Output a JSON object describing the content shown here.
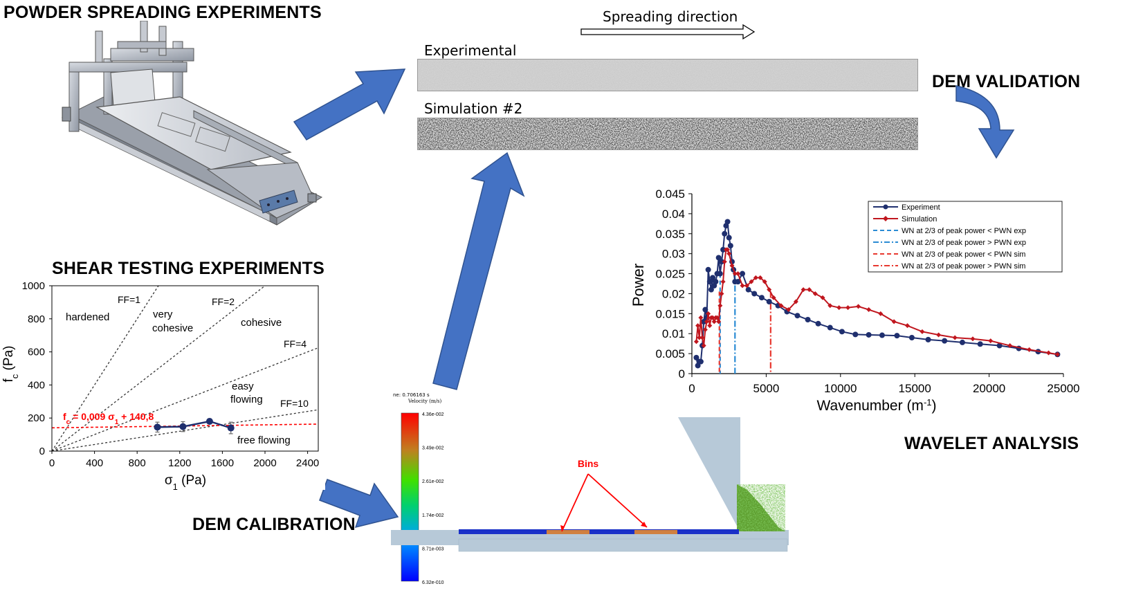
{
  "titles": {
    "powder_spreading": "POWDER SPREADING EXPERIMENTS",
    "shear_testing": "SHEAR TESTING EXPERIMENTS",
    "dem_calibration": "DEM CALIBRATION",
    "dem_validation": "DEM VALIDATION",
    "wavelet_analysis": "WAVELET ANALYSIS"
  },
  "spreading": {
    "direction_label": "Spreading direction",
    "experimental_label": "Experimental",
    "simulation_label": "Simulation #2"
  },
  "dem_sim": {
    "time_label": "ne: 0.706163 s",
    "colorbar_title": "Velocity (m/s)",
    "colorbar_ticks": [
      "4.36e-002",
      "3.49e-002",
      "2.61e-002",
      "1.74e-002",
      "8.71e-003",
      "6.32e-010"
    ],
    "bins_label": "Bins"
  },
  "colors": {
    "arrow_blue": "#4472c4",
    "experiment_navy": "#1f2f6e",
    "simulation_red": "#c0161e",
    "wn_exp_blue": "#2a8bd4",
    "wn_sim_red": "#e8382f",
    "fit_red": "#ff0000"
  },
  "chart_data": [
    {
      "type": "line",
      "ylabel": "Power",
      "ytick_labels": [
        "0",
        "0.005",
        "0.01",
        "0.015",
        "0.02",
        "0.025",
        "0.03",
        "0.035",
        "0.04",
        "0.045"
      ],
      "xtick_labels": [
        "0",
        "5000",
        "10000",
        "15000",
        "20000",
        "25000"
      ],
      "xlim": [
        0,
        25000
      ],
      "ylim": [
        0,
        0.045
      ],
      "legend_position": "top-right",
      "series": [
        {
          "name": "Experiment",
          "color": "#1f2f6e",
          "x": [
            300,
            400,
            500,
            600,
            700,
            800,
            900,
            1000,
            1100,
            1200,
            1300,
            1400,
            1500,
            1600,
            1700,
            1800,
            1900,
            2000,
            2100,
            2200,
            2300,
            2400,
            2500,
            2600,
            2700,
            2800,
            2900,
            3100,
            3400,
            3800,
            4200,
            4700,
            5200,
            5800,
            6400,
            7100,
            7800,
            8500,
            9300,
            10100,
            11000,
            11900,
            12800,
            13800,
            14800,
            15900,
            17000,
            18200,
            19400,
            20700,
            22000,
            23300,
            24600
          ],
          "y": [
            0.004,
            0.002,
            0.003,
            0.003,
            0.007,
            0.013,
            0.016,
            0.014,
            0.026,
            0.023,
            0.021,
            0.024,
            0.022,
            0.023,
            0.025,
            0.029,
            0.025,
            0.028,
            0.031,
            0.035,
            0.037,
            0.038,
            0.034,
            0.032,
            0.028,
            0.026,
            0.023,
            0.023,
            0.025,
            0.021,
            0.02,
            0.019,
            0.018,
            0.017,
            0.0155,
            0.0145,
            0.0135,
            0.0125,
            0.0115,
            0.0105,
            0.0098,
            0.0097,
            0.0096,
            0.0095,
            0.009,
            0.0085,
            0.0082,
            0.0078,
            0.0074,
            0.007,
            0.0063,
            0.0055,
            0.0048
          ]
        },
        {
          "name": "Simulation",
          "color": "#c0161e",
          "x": [
            300,
            400,
            500,
            600,
            700,
            800,
            900,
            1000,
            1100,
            1200,
            1300,
            1400,
            1500,
            1600,
            1700,
            1800,
            1900,
            2000,
            2100,
            2200,
            2300,
            2400,
            2500,
            2700,
            2900,
            3100,
            3400,
            3700,
            4000,
            4300,
            4600,
            4900,
            5200,
            5500,
            6000,
            6500,
            7000,
            7500,
            7900,
            8300,
            8800,
            9300,
            9900,
            10500,
            11200,
            11900,
            12700,
            13600,
            14500,
            15500,
            16600,
            17700,
            18900,
            20100,
            21400,
            22700,
            24000,
            24600
          ],
          "y": [
            0.008,
            0.012,
            0.009,
            0.014,
            0.009,
            0.007,
            0.011,
            0.013,
            0.015,
            0.012,
            0.014,
            0.014,
            0.013,
            0.014,
            0.014,
            0.013,
            0.017,
            0.02,
            0.023,
            0.028,
            0.031,
            0.031,
            0.03,
            0.027,
            0.025,
            0.025,
            0.022,
            0.022,
            0.023,
            0.024,
            0.024,
            0.023,
            0.021,
            0.019,
            0.017,
            0.016,
            0.018,
            0.021,
            0.021,
            0.02,
            0.019,
            0.017,
            0.0165,
            0.0165,
            0.0168,
            0.016,
            0.015,
            0.013,
            0.012,
            0.0105,
            0.0097,
            0.009,
            0.0087,
            0.0082,
            0.007,
            0.006,
            0.0052,
            0.0048
          ]
        }
      ],
      "vertical_lines": [
        {
          "name": "WN at 2/3 of peak power < PWN exp",
          "x": 1900,
          "y_top": 0.025,
          "color": "#2a8bd4",
          "dash": "dashed"
        },
        {
          "name": "WN at 2/3 of peak power > PWN exp",
          "x": 2900,
          "y_top": 0.025,
          "color": "#2a8bd4",
          "dash": "dashdot"
        },
        {
          "name": "WN at 2/3 of peak power < PWN sim",
          "x": 1850,
          "y_top": 0.0205,
          "color": "#e8382f",
          "dash": "dashed"
        },
        {
          "name": "WN at 2/3 of peak power > PWN sim",
          "x": 5300,
          "y_top": 0.0205,
          "color": "#e8382f",
          "dash": "dashdot"
        }
      ]
    },
    {
      "type": "scatter",
      "xlim": [
        0,
        2500
      ],
      "ylim": [
        0,
        1000
      ],
      "xtick_labels": [
        "0",
        "400",
        "800",
        "1200",
        "1600",
        "2000",
        "2400"
      ],
      "ytick_labels": [
        "0",
        "200",
        "400",
        "600",
        "800",
        "1000"
      ],
      "series": [
        {
          "x": [
            990,
            1230,
            1480,
            1680
          ],
          "y": [
            145,
            148,
            180,
            140
          ],
          "err": [
            30,
            30,
            15,
            35
          ],
          "color": "#1f2f6e"
        }
      ],
      "flow_function_lines": [
        {
          "label": "FF=1",
          "slope": 1
        },
        {
          "label": "FF=2",
          "slope": 0.5
        },
        {
          "label": "FF=4",
          "slope": 0.25
        },
        {
          "label": "FF=10",
          "slope": 0.1
        }
      ],
      "fit": {
        "slope": 0.009,
        "intercept": 140.8
      },
      "regions": [
        "hardened",
        "very",
        "cohesive",
        "cohesive",
        "easy",
        "flowing",
        "free flowing"
      ]
    }
  ]
}
